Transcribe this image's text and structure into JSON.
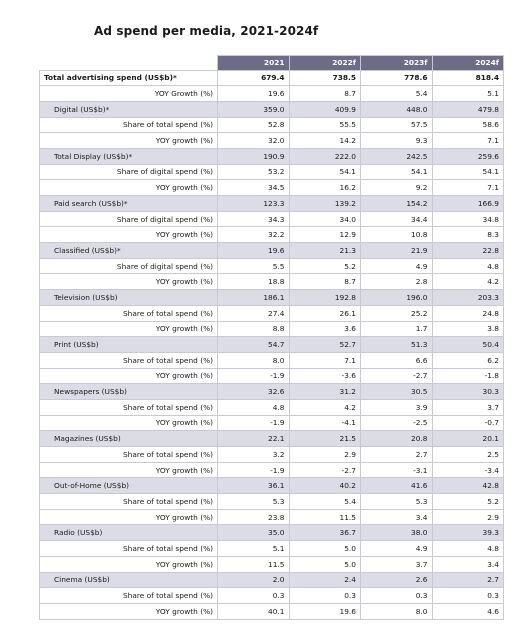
{
  "title": "Ad spend per media, 2021-2024f",
  "columns": [
    "2021",
    "2022f",
    "2023f",
    "2024f"
  ],
  "rows": [
    {
      "type": "total",
      "label": "Total advertising spend (US$b)*",
      "values": [
        "679.4",
        "738.5",
        "778.6",
        "818.4"
      ]
    },
    {
      "type": "sub",
      "label": "YOY Growth (%)",
      "values": [
        "19.6",
        "8.7",
        "5.4",
        "5.1"
      ]
    },
    {
      "type": "cat",
      "label": "Digital (US$b)*",
      "values": [
        "359.0",
        "409.9",
        "448.0",
        "479.8"
      ]
    },
    {
      "type": "sub",
      "label": "Share of total spend (%)",
      "values": [
        "52.8",
        "55.5",
        "57.5",
        "58.6"
      ]
    },
    {
      "type": "sub",
      "label": "YOY growth (%)",
      "values": [
        "32.0",
        "14.2",
        "9.3",
        "7.1"
      ]
    },
    {
      "type": "cat",
      "label": "Total Display (US$b)*",
      "values": [
        "190.9",
        "222.0",
        "242.5",
        "259.6"
      ]
    },
    {
      "type": "sub",
      "label": "Share of digital spend (%)",
      "values": [
        "53.2",
        "54.1",
        "54.1",
        "54.1"
      ]
    },
    {
      "type": "sub",
      "label": "YOY growth (%)",
      "values": [
        "34.5",
        "16.2",
        "9.2",
        "7.1"
      ]
    },
    {
      "type": "cat",
      "label": "Paid search (US$b)*",
      "values": [
        "123.3",
        "139.2",
        "154.2",
        "166.9"
      ]
    },
    {
      "type": "sub",
      "label": "Share of digital spend (%)",
      "values": [
        "34.3",
        "34.0",
        "34.4",
        "34.8"
      ]
    },
    {
      "type": "sub",
      "label": "YOY growth (%)",
      "values": [
        "32.2",
        "12.9",
        "10.8",
        "8.3"
      ]
    },
    {
      "type": "cat",
      "label": "Classified (US$b)*",
      "values": [
        "19.6",
        "21.3",
        "21.9",
        "22.8"
      ]
    },
    {
      "type": "sub",
      "label": "Share of digital spend (%)",
      "values": [
        "5.5",
        "5.2",
        "4.9",
        "4.8"
      ]
    },
    {
      "type": "sub",
      "label": "YOY growth (%)",
      "values": [
        "18.8",
        "8.7",
        "2.8",
        "4.2"
      ]
    },
    {
      "type": "cat",
      "label": "Television (US$b)",
      "values": [
        "186.1",
        "192.8",
        "196.0",
        "203.3"
      ]
    },
    {
      "type": "sub",
      "label": "Share of total spend (%)",
      "values": [
        "27.4",
        "26.1",
        "25.2",
        "24.8"
      ]
    },
    {
      "type": "sub",
      "label": "YOY growth (%)",
      "values": [
        "8.8",
        "3.6",
        "1.7",
        "3.8"
      ]
    },
    {
      "type": "cat",
      "label": "Print (US$b)",
      "values": [
        "54.7",
        "52.7",
        "51.3",
        "50.4"
      ]
    },
    {
      "type": "sub",
      "label": "Share of total spend (%)",
      "values": [
        "8.0",
        "7.1",
        "6.6",
        "6.2"
      ]
    },
    {
      "type": "sub",
      "label": "YOY growth (%)",
      "values": [
        "-1.9",
        "-3.6",
        "-2.7",
        "-1.8"
      ]
    },
    {
      "type": "cat",
      "label": "Newspapers (US$b)",
      "values": [
        "32.6",
        "31.2",
        "30.5",
        "30.3"
      ]
    },
    {
      "type": "sub",
      "label": "Share of total spend (%)",
      "values": [
        "4.8",
        "4.2",
        "3.9",
        "3.7"
      ]
    },
    {
      "type": "sub",
      "label": "YOY growth (%)",
      "values": [
        "-1.9",
        "-4.1",
        "-2.5",
        "-0.7"
      ]
    },
    {
      "type": "cat",
      "label": "Magazines (US$b)",
      "values": [
        "22.1",
        "21.5",
        "20.8",
        "20.1"
      ]
    },
    {
      "type": "sub",
      "label": "Share of total spend (%)",
      "values": [
        "3.2",
        "2.9",
        "2.7",
        "2.5"
      ]
    },
    {
      "type": "sub",
      "label": "YOY growth (%)",
      "values": [
        "-1.9",
        "-2.7",
        "-3.1",
        "-3.4"
      ]
    },
    {
      "type": "cat",
      "label": "Out-of-Home (US$b)",
      "values": [
        "36.1",
        "40.2",
        "41.6",
        "42.8"
      ]
    },
    {
      "type": "sub",
      "label": "Share of total spend (%)",
      "values": [
        "5.3",
        "5.4",
        "5.3",
        "5.2"
      ]
    },
    {
      "type": "sub",
      "label": "YOY growth (%)",
      "values": [
        "23.8",
        "11.5",
        "3.4",
        "2.9"
      ]
    },
    {
      "type": "cat",
      "label": "Radio (US$b)",
      "values": [
        "35.0",
        "36.7",
        "38.0",
        "39.3"
      ]
    },
    {
      "type": "sub",
      "label": "Share of total spend (%)",
      "values": [
        "5.1",
        "5.0",
        "4.9",
        "4.8"
      ]
    },
    {
      "type": "sub",
      "label": "YOY growth (%)",
      "values": [
        "11.5",
        "5.0",
        "3.7",
        "3.4"
      ]
    },
    {
      "type": "cat",
      "label": "Cinema (US$b)",
      "values": [
        "2.0",
        "2.4",
        "2.6",
        "2.7"
      ]
    },
    {
      "type": "sub",
      "label": "Share of total spend (%)",
      "values": [
        "0.3",
        "0.3",
        "0.3",
        "0.3"
      ]
    },
    {
      "type": "sub",
      "label": "YOY growth (%)",
      "values": [
        "40.1",
        "19.6",
        "8.0",
        "4.6"
      ]
    }
  ]
}
